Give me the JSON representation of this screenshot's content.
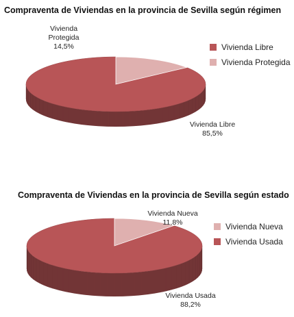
{
  "colors": {
    "libre": "#b85557",
    "protegida": "#dfb0af"
  },
  "chart_data": [
    {
      "type": "pie",
      "title": "Compraventa de Viviendas en la provincia de Sevilla según régimen",
      "slices": [
        {
          "name": "Vivienda Libre",
          "value": 85.5,
          "label_name": "Vivienda Libre",
          "label_value": "85,5%",
          "color": "#b85557"
        },
        {
          "name": "Vivienda Protegida",
          "value": 14.5,
          "label_name": "Vivienda Protegida",
          "label_value": "14,5%",
          "color": "#dfb0af"
        }
      ],
      "legend": [
        "Vivienda Libre",
        "Vivienda Protegida"
      ],
      "legend_placement": "right"
    },
    {
      "type": "pie",
      "title": "Compraventa de Viviendas en la provincia de Sevilla según estado",
      "slices": [
        {
          "name": "Vivienda Usada",
          "value": 88.2,
          "label_name": "Vivienda Usada",
          "label_value": "88,2%",
          "color": "#b85557"
        },
        {
          "name": "Vivienda Nueva",
          "value": 11.8,
          "label_name": "Vivienda Nueva",
          "label_value": "11,8%",
          "color": "#dfb0af"
        }
      ],
      "legend": [
        "Vivienda Nueva",
        "Vivienda Usada"
      ],
      "legend_placement": "right"
    }
  ]
}
